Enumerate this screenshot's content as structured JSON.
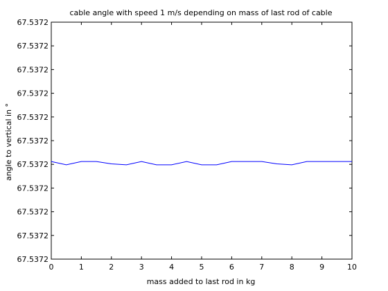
{
  "chart_data": {
    "type": "line",
    "title": "cable angle with speed 1 m/s depending on mass of last rod of cable",
    "xlabel": "mass added to last rod in kg",
    "ylabel": "angle to vertical in °",
    "xlim": [
      0,
      10
    ],
    "ylim": [
      0,
      10
    ],
    "x_ticks": [
      "0",
      "1",
      "2",
      "3",
      "4",
      "5",
      "6",
      "7",
      "8",
      "9",
      "10"
    ],
    "y_tick_labels": [
      "67.5372",
      "67.5372",
      "67.5372",
      "67.5372",
      "67.5372",
      "67.5372",
      "67.5372",
      "67.5372",
      "67.5372",
      "67.5372",
      "67.5372"
    ],
    "grid": false,
    "line_color": "#0000ff",
    "series": [
      {
        "x": [
          0,
          0.5,
          1,
          1.5,
          2,
          2.5,
          3,
          3.5,
          4,
          4.5,
          5,
          5.5,
          6,
          6.5,
          7,
          7.5,
          8,
          8.5,
          9,
          9.5,
          10
        ],
        "values": [
          4.12,
          3.98,
          4.12,
          4.12,
          4.02,
          3.98,
          4.12,
          3.98,
          3.98,
          4.12,
          3.98,
          3.98,
          4.12,
          4.12,
          4.12,
          4.02,
          3.98,
          4.12,
          4.12,
          4.12,
          4.12
        ]
      }
    ]
  }
}
